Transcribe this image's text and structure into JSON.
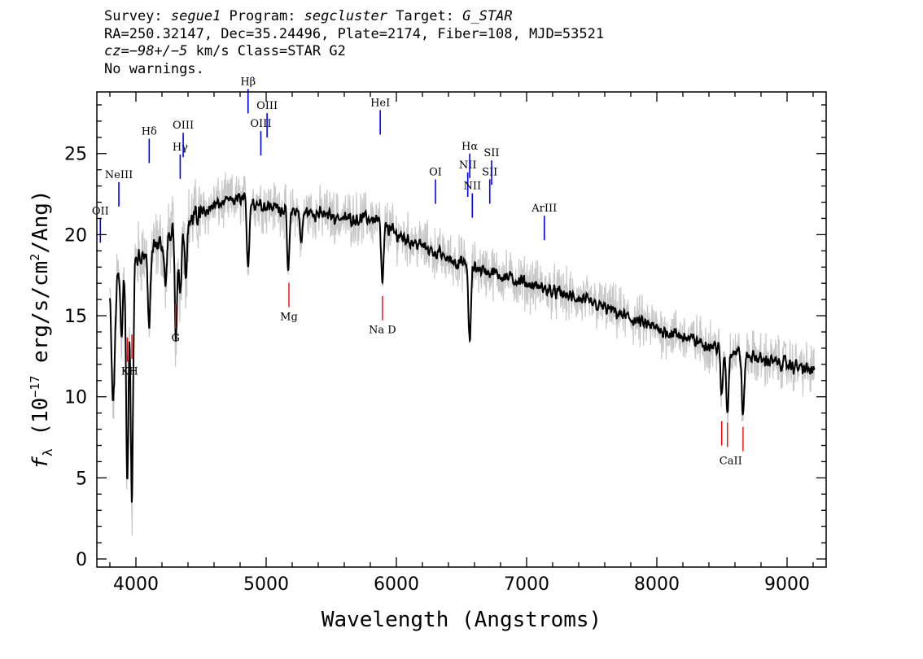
{
  "header": {
    "line1": {
      "survey_label": "Survey: ",
      "survey": "segue1",
      "program_label": " Program: ",
      "program": "segcluster",
      "target_label": " Target: ",
      "target": "G_STAR"
    },
    "line2": "RA=250.32147, Dec=35.24496, Plate=2174, Fiber=108, MJD=53521",
    "line3": {
      "cz_label": "cz",
      "cz_value": "=−98+/−5",
      "cz_units": " km/s Class=STAR G2"
    },
    "line4": "No warnings."
  },
  "chart_data": {
    "type": "line",
    "xlabel": "Wavelength (Angstroms)",
    "ylabel_prefix": "f",
    "ylabel_sub": "λ",
    "ylabel_rest": " (10",
    "ylabel_exp": "−17",
    "ylabel_units": " erg/s/cm",
    "ylabel_sq": "2",
    "ylabel_end": "/Ang)",
    "xlim": [
      3700,
      9300
    ],
    "ylim": [
      -0.5,
      28.8
    ],
    "x_ticks": [
      4000,
      5000,
      6000,
      7000,
      8000,
      9000
    ],
    "y_ticks": [
      0,
      5,
      10,
      15,
      20,
      25
    ],
    "x_tick_labels": [
      "4000",
      "5000",
      "6000",
      "7000",
      "8000",
      "9000"
    ],
    "y_tick_labels": [
      "0",
      "5",
      "10",
      "15",
      "20",
      "25"
    ],
    "series": [
      {
        "color": "#c8c8c8",
        "continuum": [
          [
            3800,
            16.5
          ],
          [
            3900,
            18.0
          ],
          [
            4000,
            18.5
          ],
          [
            4100,
            19.0
          ],
          [
            4200,
            19.5
          ],
          [
            4300,
            20.2
          ],
          [
            4400,
            20.8
          ],
          [
            4500,
            21.3
          ],
          [
            4600,
            21.8
          ],
          [
            4700,
            22.0
          ],
          [
            4800,
            22.2
          ],
          [
            4900,
            22.0
          ],
          [
            5000,
            21.8
          ],
          [
            5200,
            21.5
          ],
          [
            5400,
            21.3
          ],
          [
            5600,
            21.0
          ],
          [
            5800,
            21.0
          ],
          [
            5900,
            20.7
          ],
          [
            6000,
            20.0
          ],
          [
            6200,
            19.3
          ],
          [
            6400,
            18.5
          ],
          [
            6600,
            18.0
          ],
          [
            6800,
            17.5
          ],
          [
            7000,
            17.0
          ],
          [
            7200,
            16.5
          ],
          [
            7400,
            16.0
          ],
          [
            7600,
            15.5
          ],
          [
            7800,
            14.8
          ],
          [
            8000,
            14.2
          ],
          [
            8200,
            13.7
          ],
          [
            8400,
            13.2
          ],
          [
            8600,
            12.8
          ],
          [
            8800,
            12.3
          ],
          [
            9000,
            12.0
          ],
          [
            9200,
            11.6
          ]
        ],
        "absorption": [
          [
            3820,
            -6
          ],
          [
            3835,
            -4
          ],
          [
            3890,
            -4
          ],
          [
            3934,
            -14
          ],
          [
            3969,
            -15
          ],
          [
            4102,
            -5
          ],
          [
            4227,
            -3
          ],
          [
            4308,
            -7
          ],
          [
            4340,
            -4
          ],
          [
            4384,
            -3
          ],
          [
            4861,
            -4
          ],
          [
            5170,
            -4
          ],
          [
            5270,
            -2
          ],
          [
            5893,
            -4
          ],
          [
            6563,
            -5
          ],
          [
            8498,
            -3
          ],
          [
            8542,
            -4
          ],
          [
            8662,
            -4
          ]
        ],
        "noise_amp": 1.3
      },
      {
        "color": "#000000",
        "smoothing": true,
        "noise_amp": 0.5
      }
    ],
    "emission_lines": [
      {
        "label": "OII",
        "wave": 3727,
        "color": "#0000ff"
      },
      {
        "label": "NeIII",
        "wave": 3869,
        "color": "#0000ff"
      },
      {
        "label": "Hδ",
        "wave": 4102,
        "color": "#0000ff"
      },
      {
        "label": "Hγ",
        "wave": 4340,
        "color": "#0000ff"
      },
      {
        "label": "OIII",
        "wave": 4363,
        "color": "#0000ff"
      },
      {
        "label": "Hβ",
        "wave": 4861,
        "color": "#0000ff"
      },
      {
        "label": "OIII",
        "wave": 4959,
        "color": "#0000ff"
      },
      {
        "label": "OIII",
        "wave": 5007,
        "color": "#0000ff"
      },
      {
        "label": "HeI",
        "wave": 5876,
        "color": "#0000ff"
      },
      {
        "label": "OI",
        "wave": 6300,
        "color": "#0000ff"
      },
      {
        "label": "NII",
        "wave": 6548,
        "color": "#0000ff"
      },
      {
        "label": "Hα",
        "wave": 6563,
        "color": "#0000ff"
      },
      {
        "label": "NII",
        "wave": 6583,
        "color": "#0000ff"
      },
      {
        "label": "SII",
        "wave": 6717,
        "color": "#0000ff"
      },
      {
        "label": "SII",
        "wave": 6731,
        "color": "#0000ff"
      },
      {
        "label": "ArIII",
        "wave": 7136,
        "color": "#0000ff"
      }
    ],
    "absorption_lines": [
      {
        "label": "KH",
        "waves": [
          3934,
          3969
        ],
        "color": "#ff0000"
      },
      {
        "label": "G",
        "waves": [
          4304
        ],
        "color": "#ff0000"
      },
      {
        "label": "Mg",
        "waves": [
          5175
        ],
        "color": "#ff0000"
      },
      {
        "label": "Na D",
        "waves": [
          5893
        ],
        "color": "#ff0000"
      },
      {
        "label": "CaII",
        "waves": [
          8498,
          8542,
          8662
        ],
        "color": "#ff0000"
      }
    ]
  }
}
